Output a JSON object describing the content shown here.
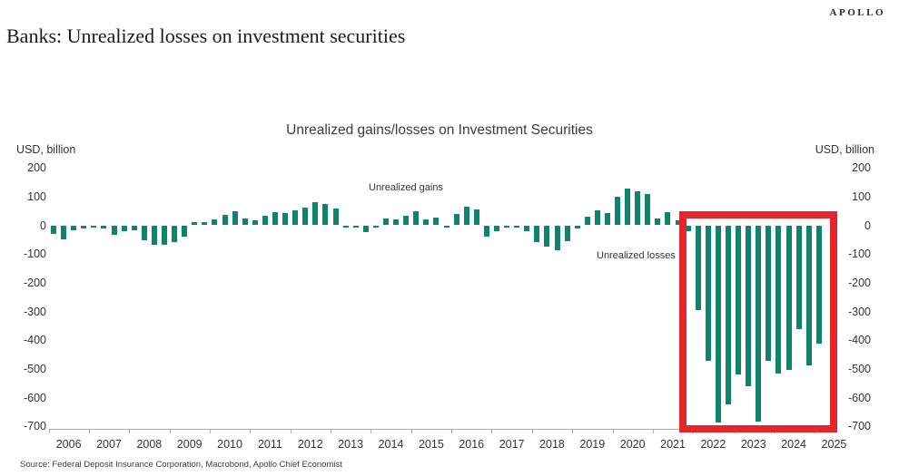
{
  "header": {
    "brand": "APOLLO",
    "title": "Banks: Unrealized losses on investment securities"
  },
  "footer": {
    "source": "Source: Federal Deposit Insurance Corporation, Macrobond, Apollo Chief Economist"
  },
  "chart_data": {
    "type": "bar",
    "title": "Unrealized gains/losses on Investment Securities",
    "ylabel_left": "USD, billion",
    "ylabel_right": "USD, billion",
    "ylim": [
      -700,
      200
    ],
    "yticks": [
      200,
      100,
      0,
      -100,
      -200,
      -300,
      -400,
      -500,
      -600,
      -700
    ],
    "grid": false,
    "legend": "none",
    "frequency": "quarterly",
    "years": [
      2006,
      2007,
      2008,
      2009,
      2010,
      2011,
      2012,
      2013,
      2014,
      2015,
      2016,
      2017,
      2018,
      2019,
      2020,
      2021,
      2022,
      2023,
      2024,
      2025
    ],
    "quarters": [
      "2006Q1",
      "2006Q2",
      "2006Q3",
      "2006Q4",
      "2007Q1",
      "2007Q2",
      "2007Q3",
      "2007Q4",
      "2008Q1",
      "2008Q2",
      "2008Q3",
      "2008Q4",
      "2009Q1",
      "2009Q2",
      "2009Q3",
      "2009Q4",
      "2010Q1",
      "2010Q2",
      "2010Q3",
      "2010Q4",
      "2011Q1",
      "2011Q2",
      "2011Q3",
      "2011Q4",
      "2012Q1",
      "2012Q2",
      "2012Q3",
      "2012Q4",
      "2013Q1",
      "2013Q2",
      "2013Q3",
      "2013Q4",
      "2014Q1",
      "2014Q2",
      "2014Q3",
      "2014Q4",
      "2015Q1",
      "2015Q2",
      "2015Q3",
      "2015Q4",
      "2016Q1",
      "2016Q2",
      "2016Q3",
      "2016Q4",
      "2017Q1",
      "2017Q2",
      "2017Q3",
      "2017Q4",
      "2018Q1",
      "2018Q2",
      "2018Q3",
      "2018Q4",
      "2019Q1",
      "2019Q2",
      "2019Q3",
      "2019Q4",
      "2020Q1",
      "2020Q2",
      "2020Q3",
      "2020Q4",
      "2021Q1",
      "2021Q2",
      "2021Q3",
      "2021Q4",
      "2022Q1",
      "2022Q2",
      "2022Q3",
      "2022Q4",
      "2023Q1",
      "2023Q2",
      "2023Q3",
      "2023Q4",
      "2024Q1",
      "2024Q2",
      "2024Q3",
      "2024Q4",
      "2025Q1"
    ],
    "values": [
      -30,
      -49,
      -17,
      -11,
      -9,
      -12,
      -33,
      -21,
      -16,
      -53,
      -68,
      -68,
      -59,
      -40,
      12,
      10,
      20,
      36,
      49,
      23,
      18,
      33,
      47,
      44,
      52,
      60,
      81,
      73,
      58,
      -3,
      -4,
      -24,
      -4,
      24,
      19,
      34,
      48,
      20,
      26,
      -4,
      39,
      66,
      55,
      -39,
      -19,
      -3,
      -2,
      -20,
      -57,
      -73,
      -88,
      -54,
      -12,
      31,
      52,
      41,
      100,
      127,
      117,
      110,
      25,
      45,
      17,
      -21,
      -296,
      -473,
      -686,
      -622,
      -520,
      -560,
      -683,
      -473,
      -515,
      -504,
      -362,
      -487,
      -411
    ],
    "annotations": {
      "gains": "Unrealized gains",
      "losses": "Unrealized losses"
    },
    "highlight": {
      "from": "2022Q1",
      "to": "2025Q1",
      "color": "#E5252A"
    },
    "colors": {
      "bar": "#10836C",
      "axis": "#AAAAAA",
      "text": "#333333"
    }
  }
}
